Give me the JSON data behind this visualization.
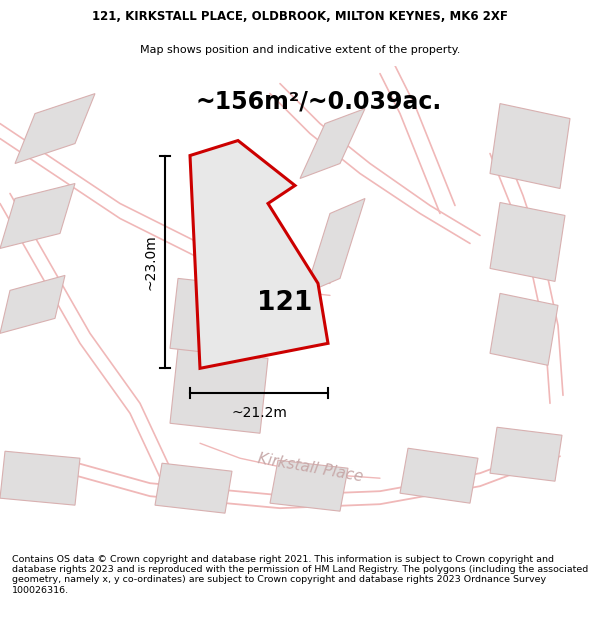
{
  "title_line1": "121, KIRKSTALL PLACE, OLDBROOK, MILTON KEYNES, MK6 2XF",
  "title_line2": "Map shows position and indicative extent of the property.",
  "area_text": "~156m²/~0.039ac.",
  "label_121": "121",
  "dim_height": "~23.0m",
  "dim_width": "~21.2m",
  "street_label": "Kirkstall Place",
  "footer_text": "Contains OS data © Crown copyright and database right 2021. This information is subject to Crown copyright and database rights 2023 and is reproduced with the permission of HM Land Registry. The polygons (including the associated geometry, namely x, y co-ordinates) are subject to Crown copyright and database rights 2023 Ordnance Survey 100026316.",
  "map_bg": "#f7f2f2",
  "plot_fill": "#e8e8e8",
  "plot_edge": "#cc0000",
  "road_color": "#f0b8b8",
  "building_fill": "#e0dede",
  "building_edge": "#d8b0b0",
  "title_fontsize": 8.5,
  "area_fontsize": 17,
  "dim_fontsize": 10,
  "label_fontsize": 19,
  "street_fontsize": 11,
  "footer_fontsize": 6.8
}
